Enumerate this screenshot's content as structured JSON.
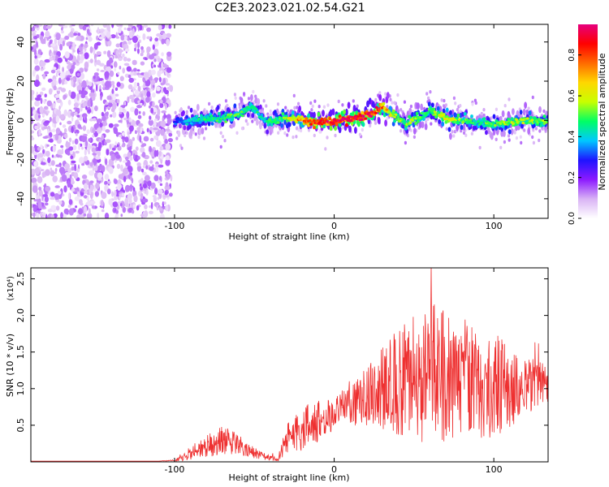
{
  "title": "C2E3.2023.021.02.54.G21",
  "chart_data": [
    {
      "type": "heatmap",
      "title": "C2E3.2023.021.02.54.G21",
      "xlabel": "Height of straight line (km)",
      "ylabel": "Frequency (Hz)",
      "xlim": [
        -190,
        134
      ],
      "ylim": [
        -50,
        49
      ],
      "xticks": [
        -100,
        0,
        100
      ],
      "xtick_labels": [
        "-100",
        "0",
        "100"
      ],
      "yticks": [
        -40,
        -20,
        0,
        20,
        40
      ],
      "ytick_labels": [
        "-40",
        "-20",
        "0",
        "20",
        "40"
      ],
      "ridge": {
        "x": [
          -100,
          -90,
          -80,
          -70,
          -60,
          -52,
          -45,
          -40,
          -30,
          -20,
          -10,
          0,
          10,
          20,
          25,
          30,
          35,
          40,
          45,
          50,
          55,
          60,
          65,
          70,
          80,
          90,
          100,
          110,
          120,
          130
        ],
        "freq": [
          -1,
          0,
          1,
          1,
          3,
          7,
          1,
          -1,
          1,
          0,
          -1,
          0,
          1,
          2,
          4,
          7,
          4,
          1,
          -2,
          1,
          2,
          5,
          3,
          1,
          0,
          -1,
          -2,
          -1,
          0,
          -1
        ],
        "amplitude": [
          0.3,
          0.4,
          0.45,
          0.45,
          0.5,
          0.45,
          0.4,
          0.45,
          0.55,
          0.75,
          0.85,
          0.9,
          0.95,
          0.9,
          0.85,
          0.8,
          0.6,
          0.55,
          0.5,
          0.55,
          0.5,
          0.5,
          0.55,
          0.6,
          0.5,
          0.45,
          0.5,
          0.55,
          0.55,
          0.5
        ]
      },
      "noise_region_x": [
        -190,
        -102
      ],
      "colorbar": {
        "label": "Normalized spectral amplitude",
        "range": [
          0,
          0.95
        ],
        "ticks": [
          0.0,
          0.2,
          0.4,
          0.6,
          0.8
        ],
        "tick_labels": [
          "0.0",
          "0.2",
          "0.4",
          "0.6",
          "0.8"
        ],
        "colors": [
          "#ffffff",
          "#d9b3f5",
          "#8c1aff",
          "#1e14ff",
          "#00c8ff",
          "#00ff64",
          "#c8ff00",
          "#ffd700",
          "#ff6a00",
          "#ff0000",
          "#e6007e"
        ]
      }
    },
    {
      "type": "line",
      "xlabel": "Height of straight line (km)",
      "ylabel": "SNR (10 * v/v)",
      "y_multiplier_label": "(x10⁴)",
      "xlim": [
        -190,
        134
      ],
      "ylim": [
        0,
        2.65
      ],
      "xticks": [
        -100,
        0,
        100
      ],
      "xtick_labels": [
        "-100",
        "0",
        "100"
      ],
      "yticks": [
        0.5,
        1.0,
        1.5,
        2.0,
        2.5
      ],
      "ytick_labels": [
        "0.5",
        "1.0",
        "1.5",
        "2.0",
        "2.5"
      ],
      "color": "#ee3030",
      "series": [
        {
          "x": [
            -190,
            -170,
            -150,
            -130,
            -110,
            -100,
            -95,
            -90,
            -85,
            -80,
            -75,
            -70,
            -65,
            -60,
            -55,
            -50,
            -45,
            -40,
            -35,
            -30,
            -25,
            -20,
            -15,
            -10,
            -5,
            0,
            5,
            10,
            15,
            20,
            25,
            30,
            35,
            40,
            45,
            50,
            55,
            60,
            65,
            70,
            75,
            80,
            85,
            90,
            95,
            100,
            105,
            110,
            115,
            120,
            125,
            130,
            134
          ],
          "values": [
            0.01,
            0.01,
            0.01,
            0.01,
            0.01,
            0.02,
            0.05,
            0.12,
            0.18,
            0.22,
            0.25,
            0.3,
            0.28,
            0.25,
            0.2,
            0.12,
            0.08,
            0.06,
            0.05,
            0.3,
            0.4,
            0.45,
            0.5,
            0.55,
            0.6,
            0.65,
            0.75,
            0.8,
            0.8,
            0.9,
            0.95,
            1.0,
            1.05,
            1.1,
            1.1,
            1.15,
            1.15,
            1.2,
            1.2,
            1.15,
            1.1,
            1.15,
            1.1,
            1.05,
            1.0,
            1.05,
            1.05,
            1.0,
            1.0,
            1.05,
            1.05,
            1.1,
            1.05
          ],
          "spread": [
            0,
            0,
            0,
            0,
            0,
            0.01,
            0.04,
            0.1,
            0.12,
            0.15,
            0.18,
            0.2,
            0.18,
            0.15,
            0.12,
            0.08,
            0.05,
            0.04,
            0.04,
            0.2,
            0.25,
            0.3,
            0.3,
            0.3,
            0.25,
            0.2,
            0.25,
            0.3,
            0.35,
            0.4,
            0.45,
            0.55,
            0.65,
            0.75,
            0.8,
            0.85,
            0.9,
            0.95,
            1.0,
            0.95,
            0.9,
            0.85,
            0.8,
            0.75,
            0.7,
            0.7,
            0.65,
            0.55,
            0.45,
            0.4,
            0.35,
            0.3,
            0.25
          ]
        }
      ]
    }
  ]
}
